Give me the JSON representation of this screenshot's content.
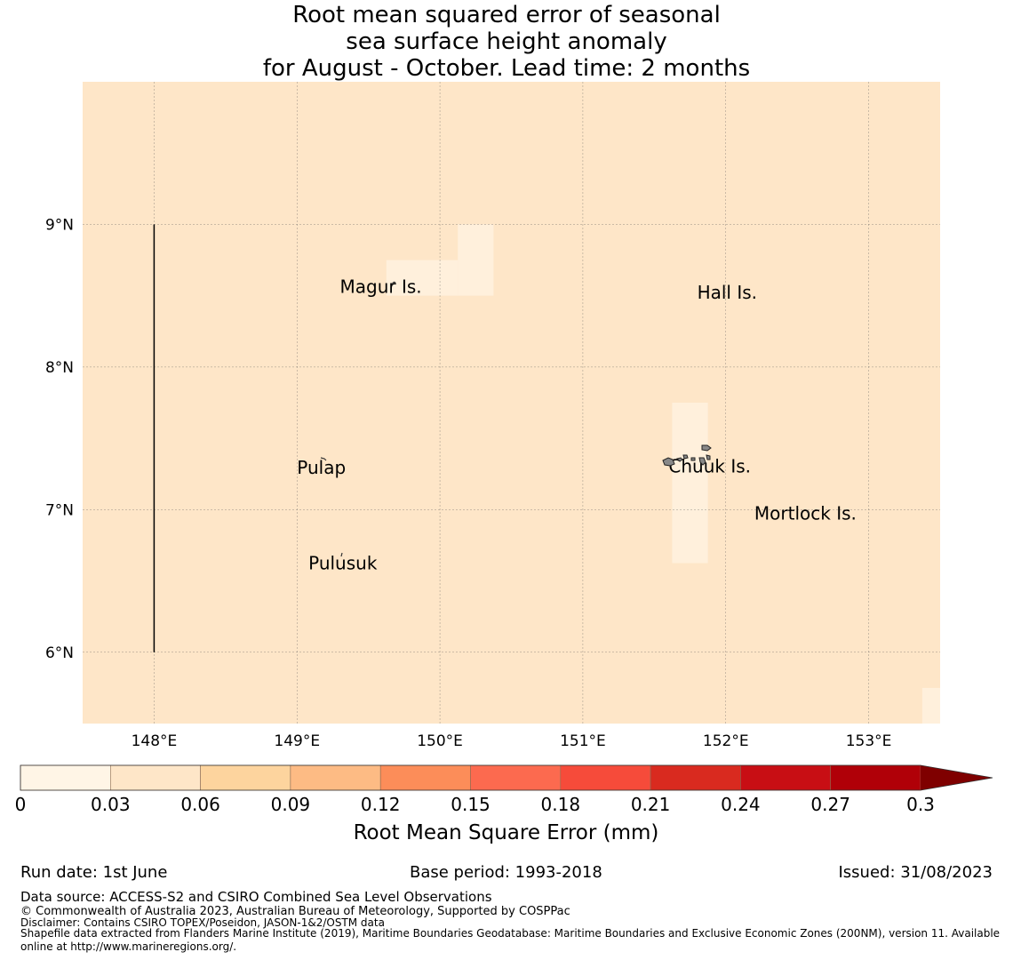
{
  "title": {
    "line1": "Root mean squared error of seasonal",
    "line2": "sea surface height anomaly",
    "line3": "for August - October. Lead time: 2 months"
  },
  "map": {
    "lon_range": [
      147.5,
      153.5
    ],
    "lat_range": [
      5.5,
      10.0
    ],
    "background_color": "#fee6c8",
    "light_color": "#fff0dc",
    "lon_ticks": [
      {
        "value": 148,
        "label": "148°E"
      },
      {
        "value": 149,
        "label": "149°E"
      },
      {
        "value": 150,
        "label": "150°E"
      },
      {
        "value": 151,
        "label": "151°E"
      },
      {
        "value": 152,
        "label": "152°E"
      },
      {
        "value": 153,
        "label": "153°E"
      }
    ],
    "lat_ticks": [
      {
        "value": 9,
        "label": "9°N"
      },
      {
        "value": 8,
        "label": "8°N"
      },
      {
        "value": 7,
        "label": "7°N"
      },
      {
        "value": 6,
        "label": "6°N"
      }
    ],
    "light_cells": [
      {
        "lon": [
          150.125,
          150.375
        ],
        "lat": [
          8.5,
          9.0
        ]
      },
      {
        "lon": [
          149.625,
          150.125
        ],
        "lat": [
          8.5,
          8.75
        ]
      },
      {
        "lon": [
          151.625,
          151.875
        ],
        "lat": [
          6.625,
          7.75
        ]
      },
      {
        "lon": [
          153.375,
          153.5
        ],
        "lat": [
          5.5,
          5.75
        ]
      }
    ],
    "boundary_line": {
      "lon": 148.0,
      "lat": [
        6.0,
        9.0
      ]
    },
    "place_labels": [
      {
        "name": "Magur Is.",
        "lon": 149.3,
        "lat": 8.52
      },
      {
        "name": "Hall Is.",
        "lon": 151.8,
        "lat": 8.48
      },
      {
        "name": "Pulap",
        "lon": 149.0,
        "lat": 7.25
      },
      {
        "name": "Chuuk Is.",
        "lon": 151.6,
        "lat": 7.26
      },
      {
        "name": "Mortlock Is.",
        "lon": 152.2,
        "lat": 6.93
      },
      {
        "name": "Pulusuk",
        "lon": 149.08,
        "lat": 6.58
      }
    ]
  },
  "colorbar": {
    "label": "Root Mean Square Error (mm)",
    "ticks": [
      "0",
      "0.03",
      "0.06",
      "0.09",
      "0.12",
      "0.15",
      "0.18",
      "0.21",
      "0.24",
      "0.27",
      "0.3"
    ],
    "colors": [
      "#fff5e6",
      "#fee6c8",
      "#fdd49e",
      "#fdbb84",
      "#fc8d59",
      "#fc6a4f",
      "#f64b3a",
      "#d92a1f",
      "#c80e14",
      "#b00008"
    ],
    "extend_color": "#7f0000"
  },
  "footer": {
    "run_date": "Run date: 1st June",
    "base_period": "Base period: 1993-2018",
    "issued": "Issued: 31/08/2023",
    "data_source": "Data source: ACCESS-S2 and CSIRO Combined Sea Level Observations",
    "copyright": "© Commonwealth of Australia 2023, Australian Bureau of Meteorology, Supported by COSPPac",
    "disclaimer": "Disclaimer: Contains CSIRO TOPEX/Poseidon, JASON-1&2/OSTM data",
    "shapefile": "Shapefile data extracted from Flanders Marine Institute (2019), Maritime Boundaries Geodatabase: Maritime Boundaries and Exclusive Economic Zones (200NM), version 11. Available online at http://www.marineregions.org/."
  }
}
